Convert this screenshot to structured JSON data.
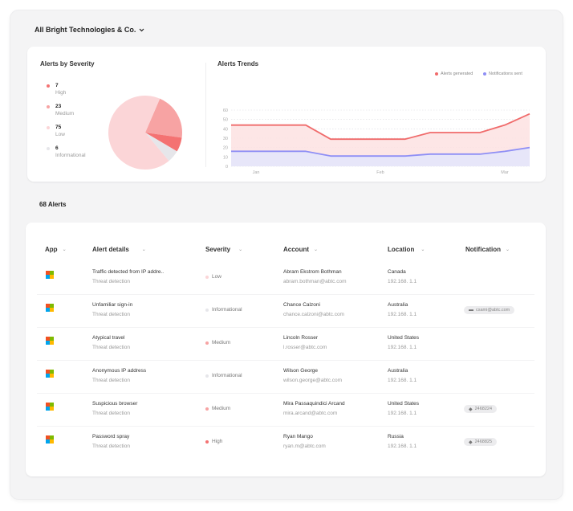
{
  "header": {
    "org_label": "All Bright Technologies & Co."
  },
  "severity_panel": {
    "title": "Alerts by Severity",
    "items": [
      {
        "count": "7",
        "label": "High",
        "color": "#f47272"
      },
      {
        "count": "23",
        "label": "Medium",
        "color": "#f7a3a3"
      },
      {
        "count": "75",
        "label": "Low",
        "color": "#fbd5d7"
      },
      {
        "count": "6",
        "label": "Informational",
        "color": "#e6e6ea"
      }
    ]
  },
  "trends_panel": {
    "title": "Alerts Trends",
    "legend": [
      {
        "label": "Alerts generated",
        "color": "#f06b6b"
      },
      {
        "label": "Notifications sent",
        "color": "#8f8ff5"
      }
    ]
  },
  "chart_data": [
    {
      "type": "pie",
      "title": "Alerts by Severity",
      "categories": [
        "High",
        "Medium",
        "Low",
        "Informational"
      ],
      "values": [
        7,
        23,
        75,
        6
      ],
      "colors": [
        "#f47272",
        "#f7a3a3",
        "#fbd5d7",
        "#e6e6ea"
      ]
    },
    {
      "type": "area",
      "title": "Alerts Trends",
      "x": [
        0,
        1,
        2,
        3,
        4,
        5,
        6,
        7,
        8,
        9,
        10,
        11,
        12
      ],
      "x_ticks": [
        {
          "x": 1,
          "label": "Jan"
        },
        {
          "x": 6,
          "label": "Feb"
        },
        {
          "x": 11,
          "label": "Mar"
        }
      ],
      "ylim": [
        0,
        60
      ],
      "yticks": [
        0,
        10,
        20,
        30,
        40,
        50,
        60
      ],
      "grid": true,
      "legend": "top-right",
      "series": [
        {
          "name": "Alerts generated",
          "color": "#f06b6b",
          "fill": "#fde2e2",
          "values": [
            44,
            44,
            44,
            44,
            29,
            29,
            29,
            29,
            36,
            36,
            36,
            44,
            56
          ]
        },
        {
          "name": "Notifications sent",
          "color": "#8f8ff5",
          "fill": "#e4e5fb",
          "values": [
            16,
            16,
            16,
            16,
            11,
            11,
            11,
            11,
            13,
            13,
            13,
            16,
            20
          ]
        }
      ]
    }
  ],
  "alerts_count": "68 Alerts",
  "table": {
    "headers": [
      "App",
      "Alert details",
      "Severity",
      "Account",
      "Location",
      "Notification"
    ],
    "rows": [
      {
        "title": "Traffic detected from IP addre..",
        "category": "Threat detection",
        "severity": "Low",
        "severity_color": "#fbd5d7",
        "name": "Abram Ekstrom Bothman",
        "email": "abram.bothman@abtc.com",
        "country": "Canada",
        "ip": "192.168. 1.1",
        "notification": "",
        "notification_icon": ""
      },
      {
        "title": "Unfamiliar sign-in",
        "category": "Threat detection",
        "severity": "Informational",
        "severity_color": "#e6e6ea",
        "name": "Chance Calzoni",
        "email": "chance.calzoni@abtc.com",
        "country": "Australia",
        "ip": "192.168. 1.1",
        "notification": "csami@abtc.com",
        "notification_icon": "▬"
      },
      {
        "title": "Atypical travel",
        "category": "Threat detection",
        "severity": "Medium",
        "severity_color": "#f7a3a3",
        "name": "Lincoln Rosser",
        "email": "l.rosser@abtc.com",
        "country": "United States",
        "ip": "192.168. 1.1",
        "notification": "",
        "notification_icon": ""
      },
      {
        "title": "Anonymous IP address",
        "category": "Threat detection",
        "severity": "Informational",
        "severity_color": "#e6e6ea",
        "name": "Wilson George",
        "email": "wilson.george@abtc.com",
        "country": "Australia",
        "ip": "192.168. 1.1",
        "notification": "",
        "notification_icon": ""
      },
      {
        "title": "Suspicious browser",
        "category": "Threat detection",
        "severity": "Medium",
        "severity_color": "#f7a3a3",
        "name": "Mira Passaquindici Arcand",
        "email": "mira.arcand@abtc.com",
        "country": "United States",
        "ip": "192.168. 1.1",
        "notification": "2468224",
        "notification_icon": "◆"
      },
      {
        "title": "Password spray",
        "category": "Threat detection",
        "severity": "High",
        "severity_color": "#f47272",
        "name": "Ryan Mango",
        "email": "ryan.m@abtc.com",
        "country": "Russia",
        "ip": "192.168. 1.1",
        "notification": "2468825",
        "notification_icon": "◆"
      }
    ]
  }
}
